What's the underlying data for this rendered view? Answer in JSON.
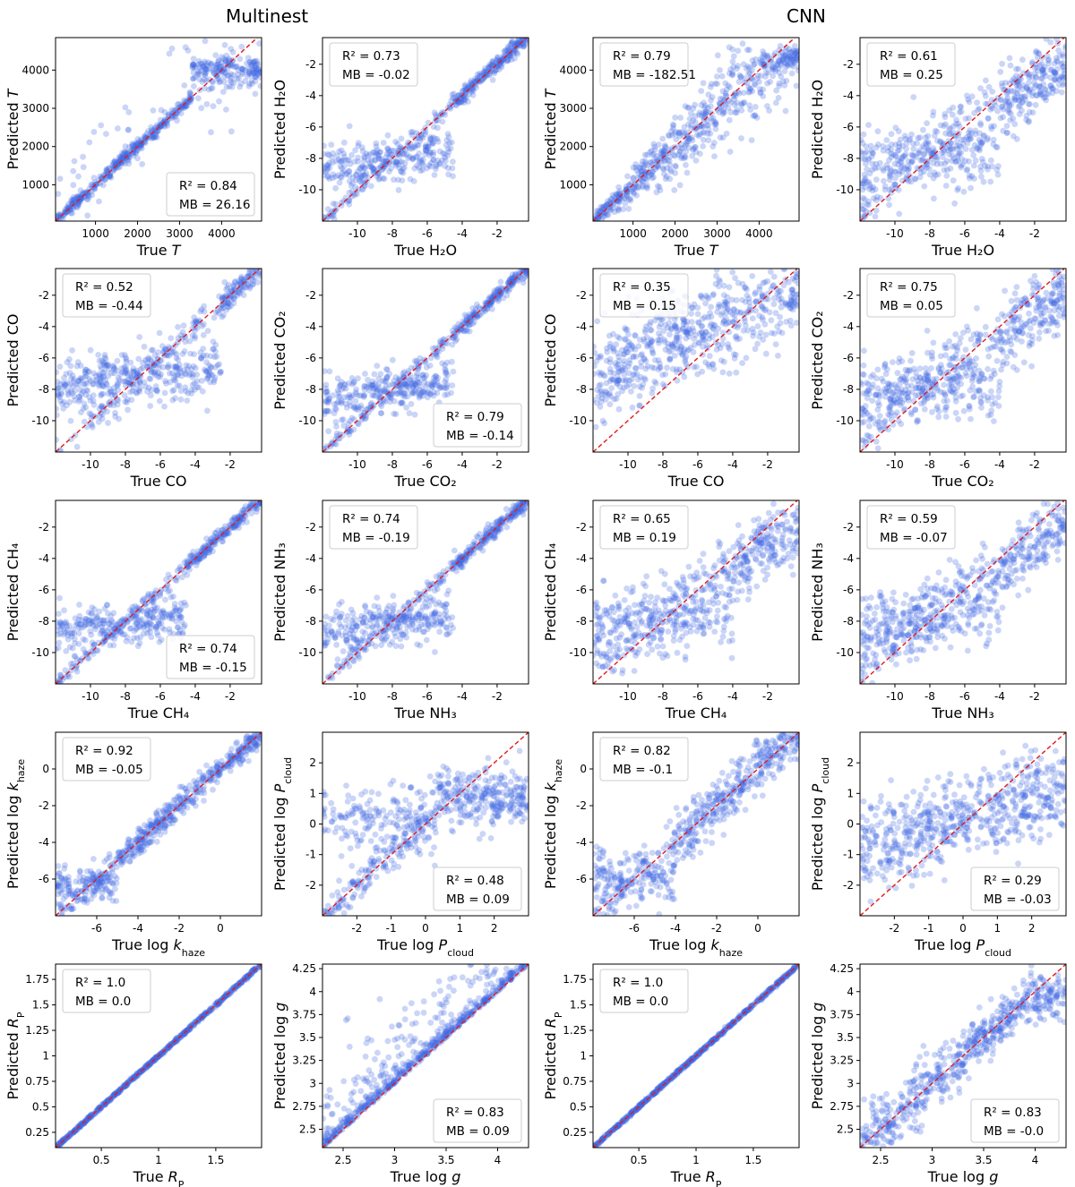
{
  "figure": {
    "titles": [
      "Multinest",
      "CNN"
    ]
  },
  "colors": {
    "points": "#4169e1",
    "identity_line": "#e31a1c",
    "axes": "#000000"
  },
  "chart_data": [
    {
      "type": "scatter",
      "method": "Multinest",
      "quantity": "T",
      "xlabel": "True T",
      "ylabel": "Predicted T",
      "xlim": [
        50,
        4950
      ],
      "ylim": [
        50,
        4850
      ],
      "xticks": [
        1000,
        2000,
        3000,
        4000
      ],
      "yticks": [
        1000,
        2000,
        3000,
        4000
      ],
      "r2": "0.84",
      "mb": "26.16",
      "r2_text": "R² = 0.84",
      "mb_text": "MB = 26.16",
      "legend": "bottom-right",
      "pattern": "plateau_high",
      "n_points": 620
    },
    {
      "type": "scatter",
      "method": "Multinest",
      "quantity": "H2O",
      "xlabel": "True H₂O",
      "ylabel": "Predicted H₂O",
      "xlim": [
        -12,
        -0.2
      ],
      "ylim": [
        -12,
        -0.3
      ],
      "xticks": [
        -10,
        -8,
        -6,
        -4,
        -2
      ],
      "yticks": [
        -10,
        -8,
        -6,
        -4,
        -2
      ],
      "r2": "0.73",
      "mb": "-0.02",
      "r2_text": "R² = 0.73",
      "mb_text": "MB = -0.02",
      "legend": "top-left",
      "pattern": "floor_low",
      "n_points": 620
    },
    {
      "type": "scatter",
      "method": "CNN",
      "quantity": "T",
      "xlabel": "True T",
      "ylabel": "Predicted T",
      "xlim": [
        50,
        4950
      ],
      "ylim": [
        50,
        4850
      ],
      "xticks": [
        1000,
        2000,
        3000,
        4000
      ],
      "yticks": [
        1000,
        2000,
        3000,
        4000
      ],
      "r2": "0.79",
      "mb": "-182.51",
      "r2_text": "R² = 0.79",
      "mb_text": "MB = -182.51",
      "legend": "top-left",
      "pattern": "widening",
      "n_points": 620
    },
    {
      "type": "scatter",
      "method": "CNN",
      "quantity": "H2O",
      "xlabel": "True H₂O",
      "ylabel": "Predicted H₂O",
      "xlim": [
        -12,
        -0.2
      ],
      "ylim": [
        -12,
        -0.3
      ],
      "xticks": [
        -10,
        -8,
        -6,
        -4,
        -2
      ],
      "yticks": [
        -10,
        -8,
        -6,
        -4,
        -2
      ],
      "r2": "0.61",
      "mb": "0.25",
      "r2_text": "R² = 0.61",
      "mb_text": "MB = 0.25",
      "legend": "top-left",
      "pattern": "floor_low_broad",
      "n_points": 620
    },
    {
      "type": "scatter",
      "method": "Multinest",
      "quantity": "CO",
      "xlabel": "True CO",
      "ylabel": "Predicted CO",
      "xlim": [
        -12,
        -0.2
      ],
      "ylim": [
        -12,
        -0.3
      ],
      "xticks": [
        -10,
        -8,
        -6,
        -4,
        -2
      ],
      "yticks": [
        -10,
        -8,
        -6,
        -4,
        -2
      ],
      "r2": "0.52",
      "mb": "-0.44",
      "r2_text": "R² = 0.52",
      "mb_text": "MB = -0.44",
      "legend": "top-left",
      "pattern": "floor_mid",
      "n_points": 620
    },
    {
      "type": "scatter",
      "method": "Multinest",
      "quantity": "CO2",
      "xlabel": "True CO₂",
      "ylabel": "Predicted CO₂",
      "xlim": [
        -12,
        -0.2
      ],
      "ylim": [
        -12,
        -0.3
      ],
      "xticks": [
        -10,
        -8,
        -6,
        -4,
        -2
      ],
      "yticks": [
        -10,
        -8,
        -6,
        -4,
        -2
      ],
      "r2": "0.79",
      "mb": "-0.14",
      "r2_text": "R² = 0.79",
      "mb_text": "MB = -0.14",
      "legend": "bottom-right",
      "pattern": "floor_low",
      "n_points": 620
    },
    {
      "type": "scatter",
      "method": "CNN",
      "quantity": "CO",
      "xlabel": "True CO",
      "ylabel": "Predicted CO",
      "xlim": [
        -12,
        -0.2
      ],
      "ylim": [
        -12,
        -0.3
      ],
      "xticks": [
        -10,
        -8,
        -6,
        -4,
        -2
      ],
      "yticks": [
        -10,
        -8,
        -6,
        -4,
        -2
      ],
      "r2": "0.35",
      "mb": "0.15",
      "r2_text": "R² = 0.35",
      "mb_text": "MB = 0.15",
      "legend": "top-left",
      "pattern": "cloud",
      "n_points": 620
    },
    {
      "type": "scatter",
      "method": "CNN",
      "quantity": "CO2",
      "xlabel": "True CO₂",
      "ylabel": "Predicted CO₂",
      "xlim": [
        -12,
        -0.2
      ],
      "ylim": [
        -12,
        -0.3
      ],
      "xticks": [
        -10,
        -8,
        -6,
        -4,
        -2
      ],
      "yticks": [
        -10,
        -8,
        -6,
        -4,
        -2
      ],
      "r2": "0.75",
      "mb": "0.05",
      "r2_text": "R² = 0.75",
      "mb_text": "MB = 0.05",
      "legend": "top-left",
      "pattern": "floor_low_broad",
      "n_points": 620
    },
    {
      "type": "scatter",
      "method": "Multinest",
      "quantity": "CH4",
      "xlabel": "True CH₄",
      "ylabel": "Predicted CH₄",
      "xlim": [
        -12,
        -0.2
      ],
      "ylim": [
        -12,
        -0.3
      ],
      "xticks": [
        -10,
        -8,
        -6,
        -4,
        -2
      ],
      "yticks": [
        -10,
        -8,
        -6,
        -4,
        -2
      ],
      "r2": "0.74",
      "mb": "-0.15",
      "r2_text": "R² = 0.74",
      "mb_text": "MB = -0.15",
      "legend": "bottom-right",
      "pattern": "floor_low",
      "n_points": 620
    },
    {
      "type": "scatter",
      "method": "Multinest",
      "quantity": "NH3",
      "xlabel": "True NH₃",
      "ylabel": "Predicted NH₃",
      "xlim": [
        -12,
        -0.2
      ],
      "ylim": [
        -12,
        -0.3
      ],
      "xticks": [
        -10,
        -8,
        -6,
        -4,
        -2
      ],
      "yticks": [
        -10,
        -8,
        -6,
        -4,
        -2
      ],
      "r2": "0.74",
      "mb": "-0.19",
      "r2_text": "R² = 0.74",
      "mb_text": "MB = -0.19",
      "legend": "top-left",
      "pattern": "floor_low",
      "n_points": 620
    },
    {
      "type": "scatter",
      "method": "CNN",
      "quantity": "CH4",
      "xlabel": "True CH₄",
      "ylabel": "Predicted CH₄",
      "xlim": [
        -12,
        -0.2
      ],
      "ylim": [
        -12,
        -0.3
      ],
      "xticks": [
        -10,
        -8,
        -6,
        -4,
        -2
      ],
      "yticks": [
        -10,
        -8,
        -6,
        -4,
        -2
      ],
      "r2": "0.65",
      "mb": "0.19",
      "r2_text": "R² = 0.65",
      "mb_text": "MB = 0.19",
      "legend": "top-left",
      "pattern": "floor_low_broad",
      "n_points": 620
    },
    {
      "type": "scatter",
      "method": "CNN",
      "quantity": "NH3",
      "xlabel": "True NH₃",
      "ylabel": "Predicted NH₃",
      "xlim": [
        -12,
        -0.2
      ],
      "ylim": [
        -12,
        -0.3
      ],
      "xticks": [
        -10,
        -8,
        -6,
        -4,
        -2
      ],
      "yticks": [
        -10,
        -8,
        -6,
        -4,
        -2
      ],
      "r2": "0.59",
      "mb": "-0.07",
      "r2_text": "R² = 0.59",
      "mb_text": "MB = -0.07",
      "legend": "top-left",
      "pattern": "floor_low_broad",
      "n_points": 620
    },
    {
      "type": "scatter",
      "method": "Multinest",
      "quantity": "log k_haze",
      "xlabel": "True log k_haze",
      "ylabel": "Predicted log k_haze",
      "xlim": [
        -8,
        2
      ],
      "ylim": [
        -8,
        2
      ],
      "xticks": [
        -6,
        -4,
        -2,
        0
      ],
      "yticks": [
        -6,
        -4,
        -2,
        0
      ],
      "r2": "0.92",
      "mb": "-0.05",
      "r2_text": "R² = 0.92",
      "mb_text": "MB = -0.05",
      "legend": "top-left",
      "pattern": "tight_floor",
      "n_points": 620
    },
    {
      "type": "scatter",
      "method": "Multinest",
      "quantity": "log P_cloud",
      "xlabel": "True log P_cloud",
      "ylabel": "Predicted log P_cloud",
      "xlim": [
        -3,
        3
      ],
      "ylim": [
        -3,
        3
      ],
      "xticks": [
        -2,
        -1,
        0,
        1,
        2
      ],
      "yticks": [
        -2,
        -1,
        0,
        1,
        2
      ],
      "r2": "0.48",
      "mb": "0.09",
      "r2_text": "R² = 0.48",
      "mb_text": "MB = 0.09",
      "legend": "bottom-right",
      "pattern": "cloud_p",
      "n_points": 620
    },
    {
      "type": "scatter",
      "method": "CNN",
      "quantity": "log k_haze",
      "xlabel": "True log k_haze",
      "ylabel": "Predicted log k_haze",
      "xlim": [
        -8,
        2
      ],
      "ylim": [
        -8,
        2
      ],
      "xticks": [
        -6,
        -4,
        -2,
        0
      ],
      "yticks": [
        -6,
        -4,
        -2,
        0
      ],
      "r2": "0.82",
      "mb": "-0.1",
      "r2_text": "R² = 0.82",
      "mb_text": "MB = -0.1",
      "legend": "top-left",
      "pattern": "medium_floor",
      "n_points": 620
    },
    {
      "type": "scatter",
      "method": "CNN",
      "quantity": "log P_cloud",
      "xlabel": "True log P_cloud",
      "ylabel": "Predicted log P_cloud",
      "xlim": [
        -3,
        3
      ],
      "ylim": [
        -3,
        3
      ],
      "xticks": [
        -2,
        -1,
        0,
        1,
        2
      ],
      "yticks": [
        -2,
        -1,
        0,
        1,
        2
      ],
      "r2": "0.29",
      "mb": "-0.03",
      "r2_text": "R² = 0.29",
      "mb_text": "MB = -0.03",
      "legend": "bottom-right",
      "pattern": "cloud_p_wide",
      "n_points": 620
    },
    {
      "type": "scatter",
      "method": "Multinest",
      "quantity": "R_P",
      "xlabel": "True R_P",
      "ylabel": "Predicted R_P",
      "xlim": [
        0.1,
        1.9
      ],
      "ylim": [
        0.1,
        1.9
      ],
      "xticks": [
        0.5,
        1.0,
        1.5
      ],
      "yticks": [
        0.25,
        0.5,
        0.75,
        1.0,
        1.25,
        1.5,
        1.75
      ],
      "r2": "1.0",
      "mb": "0.0",
      "r2_text": "R² = 1.0",
      "mb_text": "MB = 0.0",
      "legend": "top-left",
      "pattern": "perfect",
      "n_points": 620
    },
    {
      "type": "scatter",
      "method": "Multinest",
      "quantity": "log g",
      "xlabel": "True log g",
      "ylabel": "Predicted log g",
      "xlim": [
        2.3,
        4.3
      ],
      "ylim": [
        2.3,
        4.3
      ],
      "xticks": [
        2.5,
        3.0,
        3.5,
        4.0
      ],
      "yticks": [
        2.5,
        2.75,
        3.0,
        3.25,
        3.5,
        3.75,
        4.0,
        4.25
      ],
      "r2": "0.83",
      "mb": "0.09",
      "r2_text": "R² = 0.83",
      "mb_text": "MB = 0.09",
      "legend": "bottom-right",
      "pattern": "upper_spread",
      "n_points": 620
    },
    {
      "type": "scatter",
      "method": "CNN",
      "quantity": "R_P",
      "xlabel": "True R_P",
      "ylabel": "Predicted R_P",
      "xlim": [
        0.1,
        1.9
      ],
      "ylim": [
        0.1,
        1.9
      ],
      "xticks": [
        0.5,
        1.0,
        1.5
      ],
      "yticks": [
        0.25,
        0.5,
        0.75,
        1.0,
        1.25,
        1.5,
        1.75
      ],
      "r2": "1.0",
      "mb": "0.0",
      "r2_text": "R² = 1.0",
      "mb_text": "MB = 0.0",
      "legend": "top-left",
      "pattern": "perfect",
      "n_points": 620
    },
    {
      "type": "scatter",
      "method": "CNN",
      "quantity": "log g",
      "xlabel": "True log g",
      "ylabel": "Predicted log g",
      "xlim": [
        2.3,
        4.3
      ],
      "ylim": [
        2.3,
        4.3
      ],
      "xticks": [
        2.5,
        3.0,
        3.5,
        4.0
      ],
      "yticks": [
        2.5,
        2.75,
        3.0,
        3.25,
        3.5,
        3.75,
        4.0,
        4.25
      ],
      "r2": "0.83",
      "mb": "-0.0",
      "r2_text": "R² = 0.83",
      "mb_text": "MB = -0.0",
      "legend": "bottom-right",
      "pattern": "plateau_g",
      "n_points": 620
    }
  ]
}
